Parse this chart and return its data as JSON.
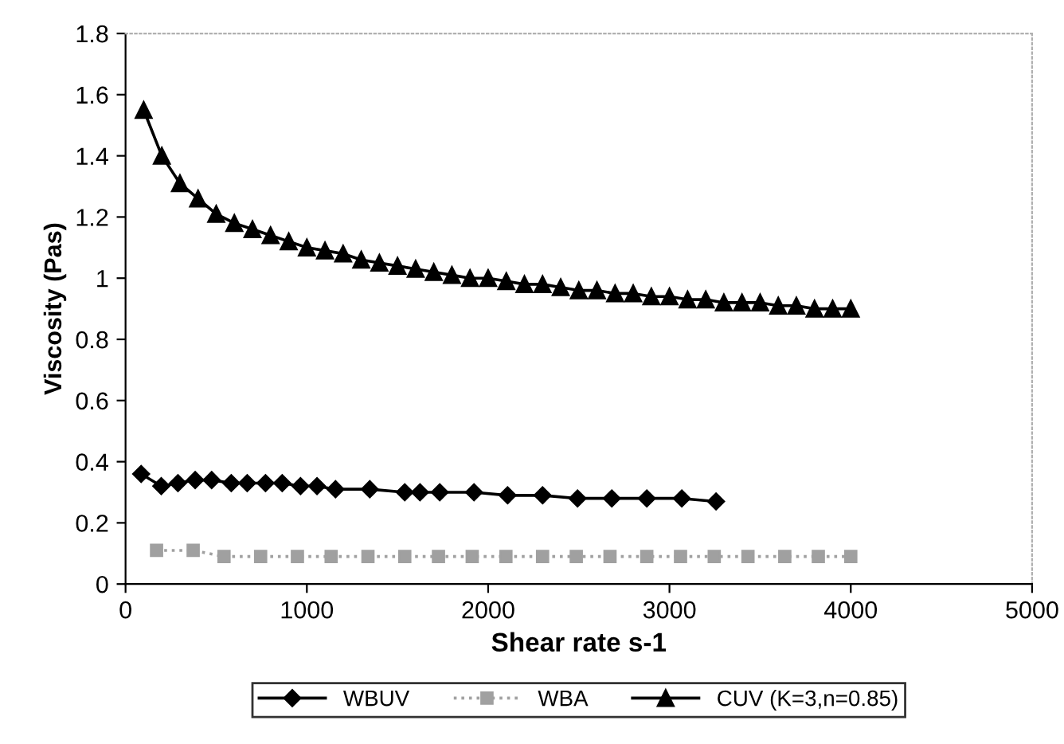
{
  "chart_data": {
    "type": "line",
    "xlabel": "Shear rate s-1",
    "ylabel": "Viscosity (Pas)",
    "xlim": [
      0,
      5000
    ],
    "xticks": [
      0,
      1000,
      2000,
      3000,
      4000,
      5000
    ],
    "ylim": [
      0,
      1.8
    ],
    "yticks": [
      0,
      0.2,
      0.4,
      0.6,
      0.8,
      1,
      1.2,
      1.4,
      1.6,
      1.8
    ],
    "grid": false,
    "legend": "bottom",
    "series": [
      {
        "name": "WBUV",
        "color": "#000000",
        "marker": "diamond",
        "line_style": "solid",
        "x": [
          86,
          197,
          289,
          384,
          475,
          583,
          671,
          772,
          864,
          965,
          1056,
          1158,
          1347,
          1540,
          1624,
          1733,
          1922,
          2107,
          2300,
          2493,
          2682,
          2875,
          3068,
          3257
        ],
        "values": [
          0.36,
          0.32,
          0.33,
          0.34,
          0.34,
          0.33,
          0.33,
          0.33,
          0.33,
          0.32,
          0.32,
          0.31,
          0.31,
          0.3,
          0.3,
          0.3,
          0.3,
          0.29,
          0.29,
          0.28,
          0.28,
          0.28,
          0.28,
          0.27
        ]
      },
      {
        "name": "WBA",
        "color": "#a0a0a0",
        "marker": "square",
        "line_style": "dotted",
        "x": [
          171,
          373,
          543,
          745,
          948,
          1134,
          1337,
          1540,
          1726,
          1912,
          2098,
          2300,
          2486,
          2672,
          2875,
          3061,
          3247,
          3433,
          3636,
          3821,
          4000
        ],
        "values": [
          0.11,
          0.11,
          0.09,
          0.09,
          0.09,
          0.09,
          0.09,
          0.09,
          0.09,
          0.09,
          0.09,
          0.09,
          0.09,
          0.09,
          0.09,
          0.09,
          0.09,
          0.09,
          0.09,
          0.09,
          0.09
        ]
      },
      {
        "name": "CUV (K=3,n=0.85)",
        "color": "#000000",
        "marker": "triangle",
        "line_style": "solid",
        "x": [
          100,
          200,
          300,
          400,
          500,
          600,
          700,
          800,
          900,
          1000,
          1100,
          1200,
          1300,
          1400,
          1500,
          1600,
          1700,
          1800,
          1900,
          2000,
          2100,
          2200,
          2300,
          2400,
          2500,
          2600,
          2700,
          2800,
          2900,
          3000,
          3100,
          3200,
          3300,
          3400,
          3500,
          3600,
          3700,
          3800,
          3900,
          4000
        ],
        "values": [
          1.55,
          1.4,
          1.31,
          1.26,
          1.21,
          1.18,
          1.16,
          1.14,
          1.12,
          1.1,
          1.09,
          1.08,
          1.06,
          1.05,
          1.04,
          1.03,
          1.02,
          1.01,
          1.0,
          1.0,
          0.99,
          0.98,
          0.98,
          0.97,
          0.96,
          0.96,
          0.95,
          0.95,
          0.94,
          0.94,
          0.93,
          0.93,
          0.92,
          0.92,
          0.92,
          0.91,
          0.91,
          0.9,
          0.9,
          0.9
        ]
      }
    ]
  }
}
